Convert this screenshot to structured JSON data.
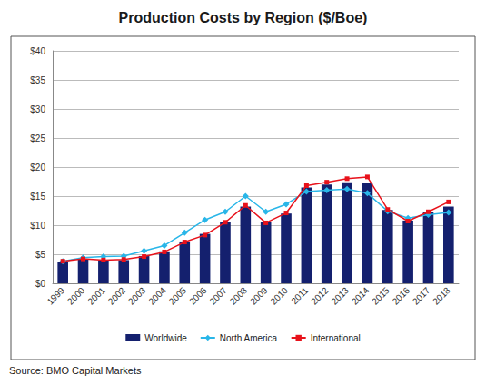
{
  "chart_data": {
    "type": "bar",
    "title": "Production Costs by Region ($/Boe)",
    "source": "Source: BMO Capital Markets",
    "categories": [
      "1999",
      "2000",
      "2001",
      "2002",
      "2003",
      "2004",
      "2005",
      "2006",
      "2007",
      "2008",
      "2009",
      "2010",
      "2011",
      "2012",
      "2013",
      "2014",
      "2015",
      "2016",
      "2017",
      "2018"
    ],
    "series": [
      {
        "name": "Worldwide",
        "type": "bar",
        "color": "#14206e",
        "values": [
          3.7,
          4.2,
          4.0,
          4.0,
          4.7,
          5.5,
          7.2,
          8.5,
          10.6,
          13.2,
          10.5,
          12.0,
          16.5,
          17.0,
          17.4,
          17.3,
          12.6,
          10.8,
          12.2,
          13.2
        ]
      },
      {
        "name": "North America",
        "type": "line",
        "color": "#29b6e8",
        "marker": "diamond",
        "values": [
          3.8,
          4.4,
          4.6,
          4.7,
          5.6,
          6.5,
          8.7,
          10.9,
          12.3,
          15.0,
          12.3,
          13.6,
          15.8,
          16.0,
          16.2,
          15.5,
          12.4,
          11.2,
          11.8,
          12.2
        ]
      },
      {
        "name": "International",
        "type": "line",
        "color": "#e8121b",
        "marker": "square",
        "values": [
          3.8,
          4.2,
          4.0,
          4.1,
          4.6,
          5.4,
          7.1,
          8.3,
          10.5,
          13.4,
          10.4,
          12.1,
          16.8,
          17.4,
          18.0,
          18.3,
          12.7,
          10.7,
          12.3,
          14.0
        ]
      }
    ],
    "ylim": [
      0,
      40
    ],
    "yticks": [
      {
        "value": 0,
        "label": "$0"
      },
      {
        "value": 5,
        "label": "$5"
      },
      {
        "value": 10,
        "label": "$10"
      },
      {
        "value": 15,
        "label": "$15"
      },
      {
        "value": 20,
        "label": "$20"
      },
      {
        "value": 25,
        "label": "$25"
      },
      {
        "value": 30,
        "label": "$30"
      },
      {
        "value": 35,
        "label": "$35"
      },
      {
        "value": 40,
        "label": "$40"
      }
    ],
    "grid": true,
    "legend": "bottom"
  }
}
